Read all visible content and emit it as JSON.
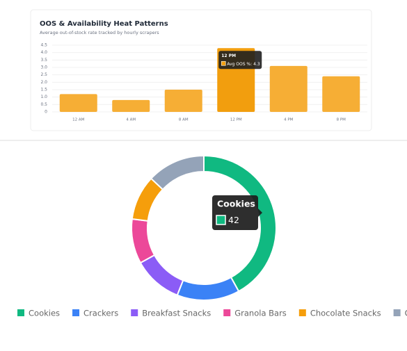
{
  "chart_data": [
    {
      "type": "bar",
      "title": "OOS & Availability Heat Patterns",
      "subtitle": "Average out-of-stock rate tracked by hourly scrapers",
      "categories": [
        "12 AM",
        "4 AM",
        "8 AM",
        "12 PM",
        "4 PM",
        "8 PM"
      ],
      "values": [
        1.2,
        0.8,
        1.5,
        4.3,
        3.1,
        2.4
      ],
      "color": "#f6ae35",
      "highlight_color": "#f29e0e",
      "ylim": [
        0,
        4.5
      ],
      "yticks": [
        0,
        0.5,
        {
          "value": 1,
          "label": "1.0"
        },
        1.5,
        {
          "value": 2,
          "label": "2.0"
        },
        2.5,
        {
          "value": 3,
          "label": "3.0"
        },
        3.5,
        {
          "value": 4,
          "label": "4.0"
        },
        4.5
      ],
      "grid": true,
      "tooltip": {
        "title": "12 PM",
        "label": "Avg OOS %:"
      }
    },
    {
      "type": "doughnut",
      "categories": [
        "Cookies",
        "Crackers",
        "Breakfast Snacks",
        "Granola Bars",
        "Chocolate Snacks",
        "Others"
      ],
      "values": [
        42,
        14,
        11,
        10,
        10,
        13
      ],
      "colors": [
        "#10b981",
        "#3b82f6",
        "#8b5cf6",
        "#ec4899",
        "#f59e0b",
        "#94a3b8"
      ],
      "legend": "bottom",
      "tooltip": {
        "title": "Cookies"
      }
    }
  ]
}
